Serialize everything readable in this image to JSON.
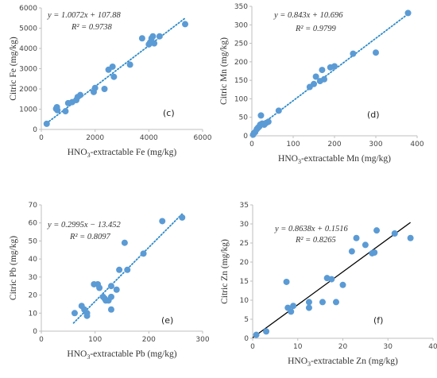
{
  "colors": {
    "marker": "#5b9bd5",
    "trend_dotted": "#2e8bc9",
    "trend_solid": "#000000"
  },
  "chart_data": [
    {
      "id": "c",
      "type": "scatter",
      "panel_label": "(c)",
      "xlabel_pre": "HNO",
      "xlabel_sub": "3",
      "xlabel_post": "-extractable Fe (mg/kg)",
      "ylabel": "Citric Fe (mg/kg)",
      "xlim": [
        0,
        6000
      ],
      "ylim": [
        0,
        6000
      ],
      "xticks": [
        0,
        2000,
        4000,
        6000
      ],
      "yticks": [
        0,
        1000,
        2000,
        3000,
        4000,
        5000,
        6000
      ],
      "equation": "y = 1.0072x + 107.88",
      "r2": "R² = 0.9738",
      "equation_boxed": true,
      "trendline": {
        "slope": 1.0072,
        "intercept": 107.88,
        "x_range": [
          200,
          5350
        ],
        "style": "dotted"
      },
      "points": [
        [
          200,
          280
        ],
        [
          550,
          1020
        ],
        [
          580,
          1100
        ],
        [
          600,
          950
        ],
        [
          900,
          900
        ],
        [
          1000,
          1300
        ],
        [
          1150,
          1350
        ],
        [
          1300,
          1450
        ],
        [
          1350,
          1600
        ],
        [
          1450,
          1700
        ],
        [
          1950,
          1850
        ],
        [
          2000,
          2050
        ],
        [
          2350,
          2000
        ],
        [
          2500,
          2950
        ],
        [
          2650,
          3100
        ],
        [
          2700,
          2600
        ],
        [
          3300,
          3200
        ],
        [
          3750,
          4500
        ],
        [
          4000,
          4200
        ],
        [
          4050,
          4300
        ],
        [
          4100,
          4500
        ],
        [
          4150,
          4600
        ],
        [
          4200,
          4250
        ],
        [
          4400,
          4600
        ],
        [
          5350,
          5200
        ]
      ]
    },
    {
      "id": "d",
      "type": "scatter",
      "panel_label": "(d)",
      "xlabel_pre": "HNO",
      "xlabel_sub": "3",
      "xlabel_post": "-extractable Mn (mg/kg)",
      "ylabel": "Citric Mn (mg/kg)",
      "xlim": [
        0,
        400
      ],
      "ylim": [
        0,
        350
      ],
      "xticks": [
        0,
        100,
        200,
        300,
        400
      ],
      "yticks": [
        0,
        50,
        100,
        150,
        200,
        250,
        300,
        350
      ],
      "equation": "y = 0.843x + 10.696",
      "r2": "R² = 0.9799",
      "equation_boxed": false,
      "trendline": {
        "slope": 0.843,
        "intercept": 10.696,
        "x_range": [
          0,
          380
        ],
        "style": "dotted"
      },
      "points": [
        [
          3,
          3
        ],
        [
          8,
          10
        ],
        [
          12,
          18
        ],
        [
          15,
          22
        ],
        [
          18,
          25
        ],
        [
          20,
          30
        ],
        [
          22,
          55
        ],
        [
          25,
          33
        ],
        [
          30,
          30
        ],
        [
          35,
          35
        ],
        [
          40,
          38
        ],
        [
          65,
          68
        ],
        [
          140,
          132
        ],
        [
          150,
          140
        ],
        [
          155,
          160
        ],
        [
          165,
          148
        ],
        [
          170,
          178
        ],
        [
          175,
          153
        ],
        [
          190,
          185
        ],
        [
          200,
          188
        ],
        [
          245,
          222
        ],
        [
          300,
          225
        ],
        [
          378,
          332
        ]
      ]
    },
    {
      "id": "e",
      "type": "scatter",
      "panel_label": "(e)",
      "xlabel_pre": "HNO",
      "xlabel_sub": "3",
      "xlabel_post": "-extractable Pb (mg/kg)",
      "ylabel": "Citric Pb (mg/kg)",
      "xlim": [
        0,
        300
      ],
      "ylim": [
        0,
        70
      ],
      "xticks": [
        0,
        100,
        200,
        300
      ],
      "yticks": [
        0,
        10,
        20,
        30,
        40,
        50,
        60,
        70
      ],
      "equation": "y = 0.2995x − 13.452",
      "r2": "R² = 0.8097",
      "equation_boxed": false,
      "trendline": {
        "slope": 0.2995,
        "intercept": -13.452,
        "x_range": [
          60,
          262
        ],
        "style": "dotted"
      },
      "points": [
        [
          62,
          10
        ],
        [
          75,
          14
        ],
        [
          80,
          12
        ],
        [
          85,
          10
        ],
        [
          85,
          8.5
        ],
        [
          98,
          26
        ],
        [
          105,
          26
        ],
        [
          108,
          24
        ],
        [
          115,
          19
        ],
        [
          118,
          18
        ],
        [
          120,
          17
        ],
        [
          125,
          17
        ],
        [
          130,
          12
        ],
        [
          130,
          19
        ],
        [
          130,
          25
        ],
        [
          140,
          23
        ],
        [
          145,
          34
        ],
        [
          155,
          49
        ],
        [
          160,
          34
        ],
        [
          190,
          43
        ],
        [
          225,
          61
        ],
        [
          262,
          63
        ]
      ]
    },
    {
      "id": "f",
      "type": "scatter",
      "panel_label": "(f)",
      "xlabel_pre": "HNO",
      "xlabel_sub": "3",
      "xlabel_post": "-extractable Zn (mg/kg)",
      "ylabel": "Citric Zn (mg/kg)",
      "xlim": [
        0,
        40
      ],
      "ylim": [
        0,
        35
      ],
      "xticks": [
        0,
        10,
        20,
        30,
        40
      ],
      "yticks": [
        0,
        5,
        10,
        15,
        20,
        25,
        30,
        35
      ],
      "equation": "y = 0.8638x + 0.1516",
      "r2": "R² = 0.8265",
      "equation_boxed": false,
      "trendline": {
        "slope": 0.8638,
        "intercept": 0.1516,
        "x_range": [
          0,
          35
        ],
        "style": "solid"
      },
      "points": [
        [
          0.8,
          0.9
        ],
        [
          3,
          1.8
        ],
        [
          7.5,
          14.8
        ],
        [
          7.8,
          8
        ],
        [
          8.5,
          7
        ],
        [
          9,
          8.5
        ],
        [
          12.5,
          9.5
        ],
        [
          12.5,
          8
        ],
        [
          15.5,
          9.5
        ],
        [
          16.5,
          15.8
        ],
        [
          17.5,
          15.5
        ],
        [
          18.5,
          9.5
        ],
        [
          20,
          14
        ],
        [
          22,
          22.8
        ],
        [
          23,
          26.3
        ],
        [
          25,
          24.5
        ],
        [
          26.5,
          22.3
        ],
        [
          27,
          22.5
        ],
        [
          27.5,
          28.3
        ],
        [
          31.5,
          27.5
        ],
        [
          35,
          26.3
        ]
      ]
    }
  ]
}
